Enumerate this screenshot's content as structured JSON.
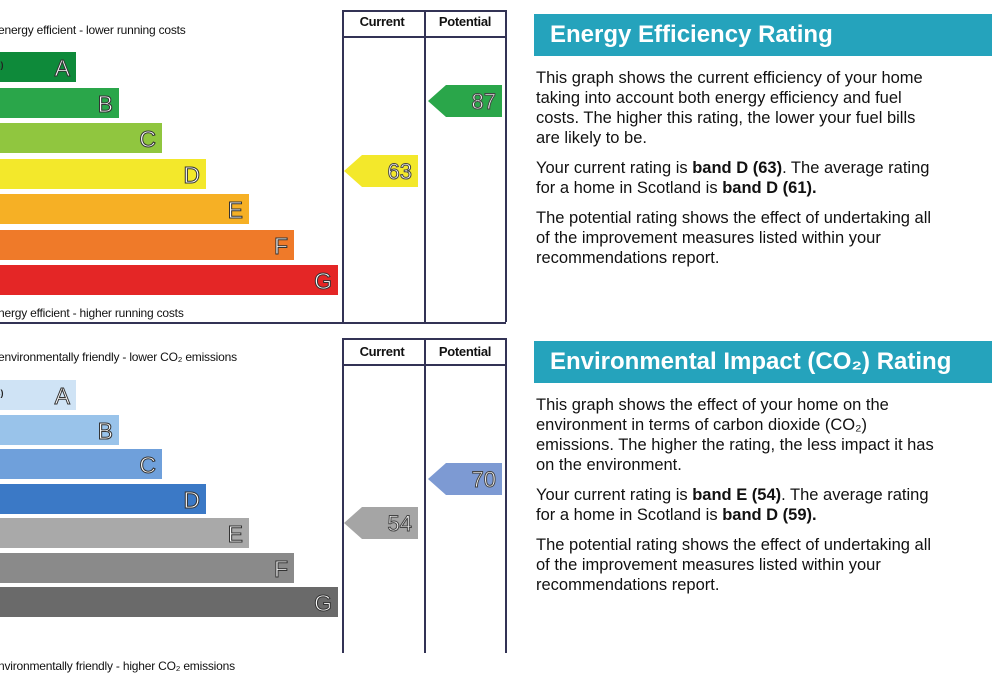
{
  "energy_panel": {
    "top_label": "energy efficient - lower running costs",
    "bottom_label": "nergy efficient - higher running costs",
    "col_current": "Current",
    "col_potential": "Potential",
    "current": {
      "value": "63",
      "band": "D",
      "color": "#f3e82b"
    },
    "potential": {
      "value": "87",
      "band": "B",
      "color": "#2aa64a"
    },
    "bands": [
      {
        "range": "us)",
        "letter": "A",
        "color": "#0e8a3a"
      },
      {
        "range": ")",
        "letter": "B",
        "color": "#2aa64a"
      },
      {
        "range": ")",
        "letter": "C",
        "color": "#90c63f"
      },
      {
        "range": ")",
        "letter": "D",
        "color": "#f3e82b"
      },
      {
        "range": ")",
        "letter": "E",
        "color": "#f6b025"
      },
      {
        "range": ")",
        "letter": "F",
        "color": "#ef7a29"
      },
      {
        "range": "",
        "letter": "G",
        "color": "#e42626"
      }
    ]
  },
  "environment_panel": {
    "top_label": "environmentally friendly - lower CO₂ emissions",
    "bottom_label": "nvironmentally friendly - higher CO₂ emissions",
    "col_current": "Current",
    "col_potential": "Potential",
    "current": {
      "value": "54",
      "band": "E",
      "color": "#a5a5a5"
    },
    "potential": {
      "value": "70",
      "band": "C",
      "color": "#7d9ad3"
    },
    "bands": [
      {
        "range": "us)",
        "letter": "A",
        "color": "#cfe3f5"
      },
      {
        "range": ")",
        "letter": "B",
        "color": "#99c3ea"
      },
      {
        "range": ")",
        "letter": "C",
        "color": "#6fa0db"
      },
      {
        "range": ")",
        "letter": "D",
        "color": "#3b79c6"
      },
      {
        "range": ")",
        "letter": "E",
        "color": "#a9a9a9"
      },
      {
        "range": ")",
        "letter": "F",
        "color": "#8a8a8a"
      },
      {
        "range": "",
        "letter": "G",
        "color": "#6a6a6a"
      }
    ]
  },
  "eer_info": {
    "title": "Energy Efficiency Rating",
    "p1": "This graph shows the current efficiency of your home\ntaking into account both energy efficiency and fuel\ncosts. The higher this rating, the lower your fuel bills\nare likely to be.",
    "p2_pre": "Your current rating is ",
    "p2_bold1": "band D (63)",
    "p2_mid": ". The average rating\nfor a home in Scotland is ",
    "p2_bold2": "band D (61).",
    "p3": "The potential rating shows the effect of undertaking all\nof the improvement measures listed within your\nrecommendations report."
  },
  "ei_info": {
    "title": "Environmental Impact (CO₂) Rating",
    "p1": "This graph shows the effect of your home on the\nenvironment in terms of carbon dioxide (CO₂)\nemissions. The higher the rating, the less impact it has\non the environment.",
    "p2_pre": "Your current rating is ",
    "p2_bold1": "band E (54)",
    "p2_mid": ". The average rating\nfor a home in Scotland is ",
    "p2_bold2": "band D (59).",
    "p3": "The potential rating shows the effect of undertaking all\nof the improvement measures listed within your\nrecommendations report."
  }
}
